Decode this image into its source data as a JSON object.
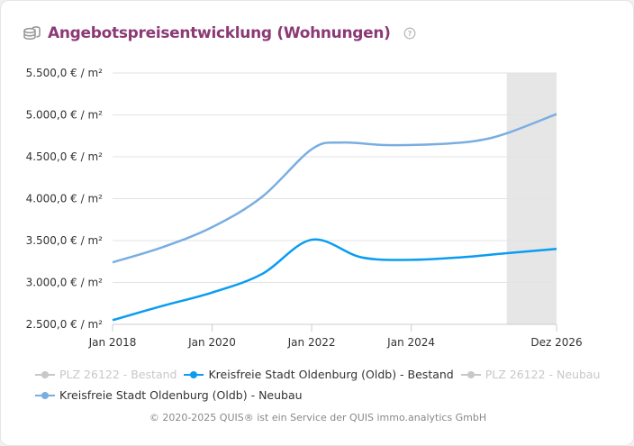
{
  "header": {
    "title": "Angebotspreisentwicklung (Wohnungen)",
    "icon": "coins-icon",
    "help_icon": "question-circle-icon"
  },
  "chart_data": {
    "type": "line",
    "title": "Angebotspreisentwicklung (Wohnungen)",
    "x_ticks": [
      {
        "x": 2018,
        "label": "Jan 2018"
      },
      {
        "x": 2020,
        "label": "Jan 2020"
      },
      {
        "x": 2022,
        "label": "Jan 2022"
      },
      {
        "x": 2024,
        "label": "Jan 2024"
      },
      {
        "x": 2026.92,
        "label": "Dez 2026"
      }
    ],
    "xlim": [
      2018,
      2026.92
    ],
    "y_ticks": [
      {
        "y": 2500,
        "label": "2.500,0 € / m²"
      },
      {
        "y": 3000,
        "label": "3.000,0 € / m²"
      },
      {
        "y": 3500,
        "label": "3.500,0 € / m²"
      },
      {
        "y": 4000,
        "label": "4.000,0 € / m²"
      },
      {
        "y": 4500,
        "label": "4.500,0 € / m²"
      },
      {
        "y": 5000,
        "label": "5.000,0 € / m²"
      },
      {
        "y": 5500,
        "label": "5.500,0 € / m²"
      }
    ],
    "ylim": [
      2500,
      5500
    ],
    "grid": true,
    "forecast_band": {
      "from": 2025.92,
      "to": 2026.92,
      "color": "#e6e6e6"
    },
    "legend_placement": "bottom",
    "series": [
      {
        "name": "PLZ 26122 - Bestand",
        "color": "#c8c8c8",
        "visible": false,
        "x": [],
        "values": []
      },
      {
        "name": "Kreisfreie Stadt Oldenburg (Oldb) - Bestand",
        "color": "#0a9cf0",
        "visible": true,
        "x": [
          2018,
          2019,
          2020,
          2021,
          2022,
          2023,
          2024,
          2025,
          2025.92,
          2026.92
        ],
        "values": [
          2550,
          2720,
          2880,
          3100,
          3510,
          3300,
          3270,
          3300,
          3350,
          3400
        ]
      },
      {
        "name": "PLZ 26122 - Neubau",
        "color": "#c8c8c8",
        "visible": false,
        "x": [],
        "values": []
      },
      {
        "name": "Kreisfreie Stadt Oldenburg (Oldb) - Neubau",
        "color": "#7aaee0",
        "visible": true,
        "x": [
          2018,
          2019,
          2020,
          2021,
          2022,
          2022.6,
          2023.5,
          2024.5,
          2025.3,
          2025.92,
          2026.92
        ],
        "values": [
          3240,
          3420,
          3660,
          4020,
          4590,
          4670,
          4640,
          4650,
          4690,
          4780,
          5010
        ]
      }
    ]
  },
  "footer": {
    "copyright": "© 2020-2025 QUIS® ist ein Service der QUIS immo.analytics GmbH"
  }
}
